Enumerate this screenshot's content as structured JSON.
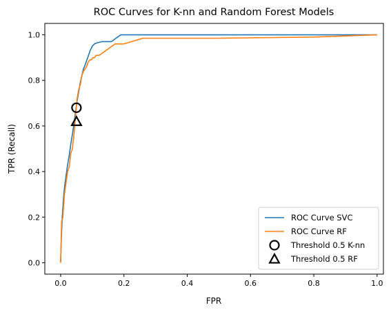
{
  "chart_data": {
    "type": "line",
    "title": "ROC Curves for K-nn and Random Forest Models",
    "xlabel": "FPR",
    "ylabel": "TPR (Recall)",
    "xlim": [
      -0.05,
      1.02
    ],
    "ylim": [
      -0.05,
      1.05
    ],
    "xticks": [
      "0.0",
      "0.2",
      "0.4",
      "0.6",
      "0.8",
      "1.0"
    ],
    "yticks": [
      "0.0",
      "0.2",
      "0.4",
      "0.6",
      "0.8",
      "1.0"
    ],
    "grid": false,
    "legend_position": "lower-right",
    "series": [
      {
        "name": "ROC Curve SVC",
        "color": "#1f77b4",
        "x": [
          0.0,
          0.002,
          0.005,
          0.01,
          0.013,
          0.017,
          0.022,
          0.027,
          0.032,
          0.038,
          0.043,
          0.048,
          0.052,
          0.057,
          0.062,
          0.067,
          0.072,
          0.078,
          0.083,
          0.088,
          0.093,
          0.1,
          0.107,
          0.115,
          0.13,
          0.16,
          0.19,
          0.4,
          0.6,
          0.8,
          1.0
        ],
        "y": [
          0.0,
          0.1,
          0.2,
          0.3,
          0.34,
          0.38,
          0.43,
          0.47,
          0.52,
          0.57,
          0.62,
          0.67,
          0.71,
          0.75,
          0.79,
          0.82,
          0.85,
          0.87,
          0.89,
          0.91,
          0.93,
          0.95,
          0.96,
          0.965,
          0.97,
          0.97,
          1.0,
          1.0,
          1.0,
          1.0,
          1.0
        ]
      },
      {
        "name": "ROC Curve RF",
        "color": "#ff7f0e",
        "x": [
          0.0,
          0.003,
          0.007,
          0.012,
          0.017,
          0.022,
          0.027,
          0.032,
          0.037,
          0.042,
          0.047,
          0.052,
          0.057,
          0.062,
          0.067,
          0.072,
          0.077,
          0.082,
          0.087,
          0.092,
          0.097,
          0.102,
          0.107,
          0.112,
          0.122,
          0.132,
          0.142,
          0.152,
          0.162,
          0.172,
          0.2,
          0.26,
          0.5,
          0.8,
          1.0
        ],
        "y": [
          0.0,
          0.18,
          0.2,
          0.3,
          0.35,
          0.4,
          0.42,
          0.48,
          0.5,
          0.56,
          0.64,
          0.72,
          0.76,
          0.78,
          0.82,
          0.84,
          0.85,
          0.86,
          0.88,
          0.89,
          0.89,
          0.9,
          0.9,
          0.91,
          0.91,
          0.92,
          0.93,
          0.94,
          0.95,
          0.96,
          0.96,
          0.985,
          0.985,
          0.99,
          1.0
        ]
      }
    ],
    "markers": [
      {
        "name": "Threshold 0.5 K-nn",
        "shape": "circle",
        "x": 0.05,
        "y": 0.68,
        "color": "#000000"
      },
      {
        "name": "Threshold 0.5 RF",
        "shape": "triangle",
        "x": 0.05,
        "y": 0.62,
        "color": "#000000"
      }
    ]
  }
}
